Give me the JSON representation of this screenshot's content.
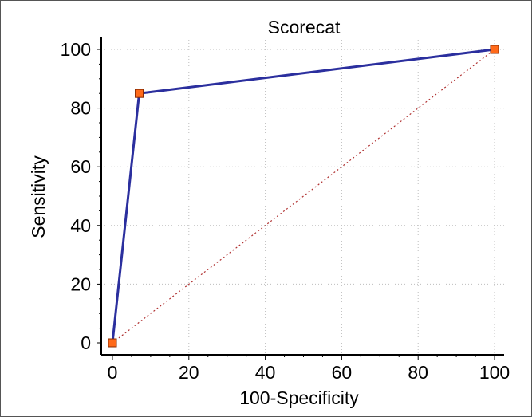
{
  "chart_data": {
    "type": "line",
    "title": "Scorecat",
    "xlabel": "100-Specificity",
    "ylabel": "Sensitivity",
    "xlim": [
      0,
      100
    ],
    "ylim": [
      0,
      100
    ],
    "xticks": [
      0,
      20,
      40,
      60,
      80,
      100
    ],
    "yticks": [
      0,
      20,
      40,
      60,
      80,
      100
    ],
    "grid": true,
    "series": [
      {
        "x": [
          0,
          7,
          100
        ],
        "y": [
          0,
          85,
          100
        ],
        "color": "#2b2f9e",
        "marker": "square",
        "marker_color": "#ff6a1a"
      }
    ],
    "reference_line": {
      "x": [
        0,
        100
      ],
      "y": [
        0,
        100
      ],
      "color": "#b03030",
      "style": "dotted"
    }
  }
}
